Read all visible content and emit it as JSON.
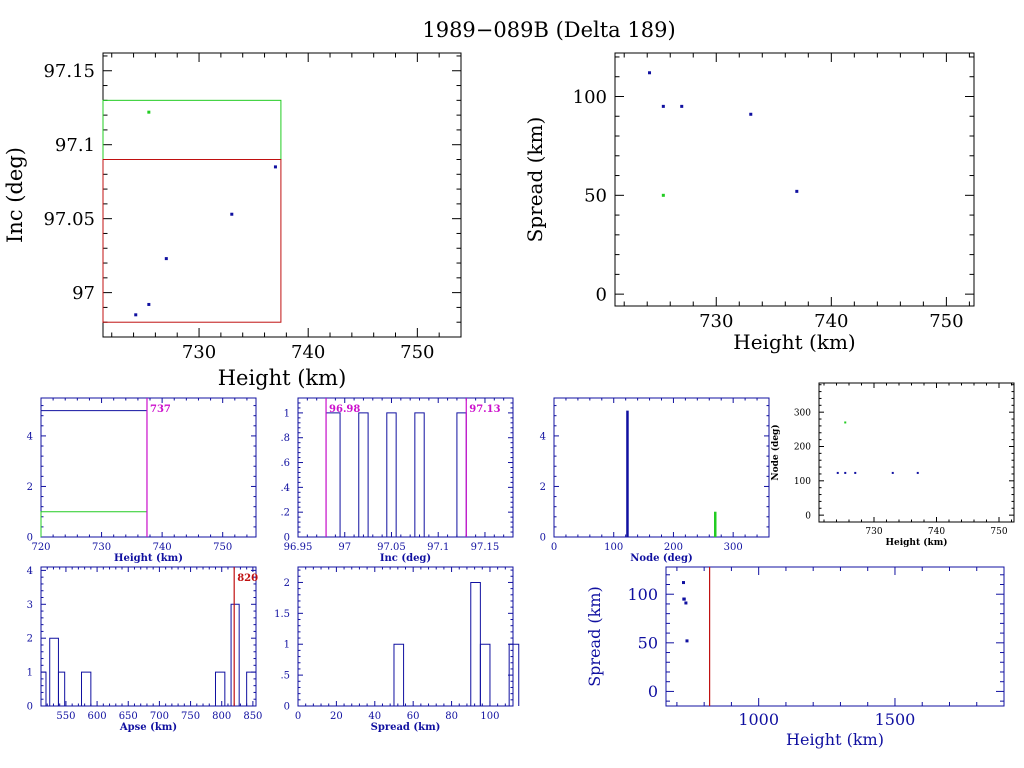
{
  "title": "1989−089B (Delta 189)",
  "colors": {
    "black": "#000000",
    "blue": "#1010a0",
    "green": "#22cc22",
    "red": "#c01010",
    "magenta": "#cc10cc"
  },
  "chart_data": [
    {
      "id": "inc-vs-height",
      "type": "scatter",
      "xlabel": "Height (km)",
      "ylabel": "Inc (deg)",
      "xlim": [
        721.2,
        754
      ],
      "ylim": [
        96.97,
        97.162
      ],
      "xticks": [
        730,
        740,
        750
      ],
      "yticks": [
        97,
        97.05,
        97.1,
        97.15
      ],
      "xtick_labels": [
        "730",
        "740",
        "750"
      ],
      "yticks_labels": [
        "97",
        "97.05",
        "97.1",
        "97.15"
      ],
      "series": [
        {
          "color": "blue",
          "points": [
            [
              724.2,
              96.985
            ],
            [
              725.4,
              96.992
            ],
            [
              727,
              97.023
            ],
            [
              733,
              97.053
            ],
            [
              737,
              97.085
            ]
          ]
        },
        {
          "color": "green",
          "points": [
            [
              725.4,
              97.122
            ]
          ]
        }
      ],
      "boxes": [
        {
          "color": "green",
          "x": [
            721.2,
            737.5
          ],
          "y": [
            97.09,
            97.13
          ]
        },
        {
          "color": "red",
          "x": [
            721.2,
            737.5
          ],
          "y": [
            96.98,
            97.09
          ]
        }
      ]
    },
    {
      "id": "spread-vs-height",
      "type": "scatter",
      "xlabel": "Height (km)",
      "ylabel": "Spread (km)",
      "xlim": [
        721.2,
        752.4
      ],
      "ylim": [
        -6,
        122
      ],
      "xticks": [
        730,
        740,
        750
      ],
      "yticks": [
        0,
        50,
        100
      ],
      "xtick_labels": [
        "730",
        "740",
        "750"
      ],
      "ytick_labels": [
        "0",
        "50",
        "100"
      ],
      "series": [
        {
          "color": "blue",
          "points": [
            [
              724.2,
              112
            ],
            [
              725.4,
              95
            ],
            [
              727,
              95
            ],
            [
              733,
              91
            ],
            [
              737,
              52
            ]
          ]
        },
        {
          "color": "green",
          "points": [
            [
              725.4,
              50
            ]
          ]
        }
      ]
    },
    {
      "id": "height-histogram",
      "type": "histogram",
      "xlabel": "Height (km)",
      "xlim": [
        720,
        755.5
      ],
      "ylim": [
        0,
        5.5
      ],
      "xticks": [
        720,
        730,
        740,
        750
      ],
      "yticks": [
        0,
        2,
        4
      ],
      "xtick_labels": [
        "720",
        "730",
        "740",
        "750"
      ],
      "ytick_labels": [
        "0",
        "2",
        "4"
      ],
      "series": [
        {
          "color": "blue",
          "bins": [
            [
              720,
              737.5,
              5
            ]
          ]
        },
        {
          "color": "green",
          "bins": [
            [
              720,
              737.5,
              1
            ]
          ]
        }
      ],
      "markers": [
        {
          "x": 737.5,
          "color": "magenta",
          "label": "737"
        }
      ]
    },
    {
      "id": "inc-histogram",
      "type": "histogram",
      "xlabel": "Inc (deg)",
      "xlim": [
        96.95,
        97.18
      ],
      "ylim": [
        0,
        1.12
      ],
      "xticks": [
        96.95,
        97,
        97.05,
        97.1,
        97.15
      ],
      "yticks": [
        0,
        0.2,
        0.4,
        0.6,
        0.8,
        1
      ],
      "xtick_labels": [
        "96.95",
        "97",
        "97.05",
        "97.1",
        "97.15"
      ],
      "ytick_labels": [
        "0",
        ".2",
        ".4",
        ".6",
        ".8",
        "1"
      ],
      "series": [
        {
          "color": "blue",
          "bins": [
            [
              96.98,
              96.995,
              1
            ],
            [
              97.015,
              97.025,
              1
            ],
            [
              97.045,
              97.055,
              1
            ],
            [
              97.075,
              97.085,
              1
            ],
            [
              97.12,
              97.13,
              1
            ]
          ]
        }
      ],
      "markers": [
        {
          "x": 96.98,
          "color": "magenta",
          "label": "96.98"
        },
        {
          "x": 97.13,
          "color": "magenta",
          "label": "97.13"
        }
      ]
    },
    {
      "id": "node-histogram",
      "type": "histogram",
      "xlabel": "Node (deg)",
      "xlim": [
        0,
        360
      ],
      "ylim": [
        0,
        5.5
      ],
      "xticks": [
        0,
        100,
        200,
        300
      ],
      "yticks": [
        0,
        2,
        4
      ],
      "xtick_labels": [
        "0",
        "100",
        "200",
        "300"
      ],
      "ytick_labels": [
        "0",
        "2",
        "4"
      ],
      "series": [
        {
          "color": "blue",
          "bars": [
            [
              123,
              5
            ]
          ]
        },
        {
          "color": "green",
          "bars": [
            [
              270,
              1
            ]
          ]
        }
      ]
    },
    {
      "id": "node-vs-height",
      "type": "scatter",
      "xlabel": "Height (km)",
      "ylabel": "Node (deg)",
      "xlim": [
        721.2,
        752.4
      ],
      "ylim": [
        -20,
        385
      ],
      "xticks": [
        730,
        740,
        750
      ],
      "yticks": [
        0,
        100,
        200,
        300
      ],
      "xtick_labels": [
        "730",
        "740",
        "750"
      ],
      "ytick_labels": [
        "0",
        "100",
        "200",
        "300"
      ],
      "series": [
        {
          "color": "blue",
          "points": [
            [
              724.2,
              123
            ],
            [
              725.4,
              123
            ],
            [
              727,
              123
            ],
            [
              733,
              123
            ],
            [
              737,
              123
            ]
          ]
        },
        {
          "color": "green",
          "points": [
            [
              725.4,
              270
            ]
          ]
        }
      ]
    },
    {
      "id": "apse-histogram",
      "type": "histogram",
      "xlabel": "Apse (km)",
      "xlim": [
        510,
        855
      ],
      "ylim": [
        0,
        4.1
      ],
      "xticks": [
        550,
        600,
        650,
        700,
        750,
        800,
        850
      ],
      "yticks": [
        0,
        1,
        2,
        3,
        4
      ],
      "xtick_labels": [
        "550",
        "600",
        "650",
        "700",
        "750",
        "800",
        "850"
      ],
      "ytick_labels": [
        "0",
        "1",
        "2",
        "3",
        "4"
      ],
      "series": [
        {
          "color": "blue",
          "bins": [
            [
              510,
              518,
              1
            ],
            [
              524,
              538,
              2
            ],
            [
              538,
              548,
              1
            ],
            [
              575,
              590,
              1
            ],
            [
              790,
              805,
              1
            ],
            [
              815,
              828,
              3
            ],
            [
              840,
              855,
              1
            ]
          ]
        }
      ],
      "markers": [
        {
          "x": 820,
          "color": "red",
          "label": "820"
        }
      ]
    },
    {
      "id": "spread-histogram",
      "type": "histogram",
      "xlabel": "Spread (km)",
      "xlim": [
        0,
        112
      ],
      "ylim": [
        0,
        2.25
      ],
      "xticks": [
        0,
        20,
        40,
        60,
        80,
        100
      ],
      "yticks": [
        0,
        0.5,
        1,
        1.5,
        2
      ],
      "xtick_labels": [
        "0",
        "20",
        "40",
        "60",
        "80",
        "100"
      ],
      "ytick_labels": [
        "0",
        ".5",
        "1",
        "1.5",
        "2"
      ],
      "series": [
        {
          "color": "blue",
          "bins": [
            [
              50,
              55,
              1
            ],
            [
              90,
              95,
              2
            ],
            [
              95,
              100,
              1
            ],
            [
              110,
              115,
              1
            ]
          ]
        }
      ]
    },
    {
      "id": "spread-vs-height-wide",
      "type": "scatter",
      "xlabel": "Height (km)",
      "ylabel": "Spread (km)",
      "xlim": [
        660,
        1900
      ],
      "ylim": [
        -15,
        128
      ],
      "xticks": [
        1000,
        1500
      ],
      "yticks": [
        0,
        50,
        100
      ],
      "xtick_labels": [
        "1000",
        "1500"
      ],
      "ytick_labels": [
        "0",
        "50",
        "100"
      ],
      "series": [
        {
          "color": "blue",
          "points": [
            [
              724.2,
              112
            ],
            [
              725.4,
              95
            ],
            [
              727,
              95
            ],
            [
              733,
              91
            ],
            [
              737,
              52
            ]
          ]
        }
      ],
      "markers": [
        {
          "x": 820,
          "color": "red",
          "label": ""
        }
      ]
    }
  ]
}
